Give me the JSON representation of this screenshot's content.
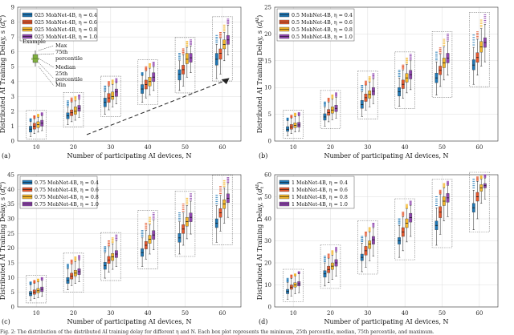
{
  "colors": {
    "eta04": "#1f77b4",
    "eta06": "#e4572e",
    "eta08": "#f3b62a",
    "eta10": "#8e44ad",
    "grid": "#dcdcdc",
    "box_dash": "#777777"
  },
  "caption": "Fig. 2: The distribution of the distributed AI training delay for different η and N. Each box plot represents the minimum, 25th percentile, median, 75th percentile, and maximum.",
  "annotation": {
    "example": "Example",
    "max": "Max",
    "p75_a": "75th",
    "p75_b": "percentile",
    "median": "Median",
    "p25_a": "25th",
    "p25_b": "percentile",
    "min": "Min"
  },
  "chart_data": [
    {
      "panel": "(a)",
      "type": "boxplot",
      "xlabel": "Number of participating AI devices, N",
      "ylabel": "Distributed AI Training Delay, s (d_t^AI)",
      "categories": [
        10,
        20,
        30,
        40,
        50,
        60
      ],
      "ylim": [
        0,
        9
      ],
      "yticks": [
        0,
        1,
        2,
        3,
        4,
        5,
        6,
        7,
        8,
        9
      ],
      "legend": [
        "025 MobNet-4B, η = 0.4",
        "025 MobNet-4B, η = 0.6",
        "025 MobNet-4B, η = 0.8",
        "025 MobNet-4B, η = 1.0"
      ],
      "series": [
        {
          "name": "η = 0.4",
          "median": [
            0.8,
            1.7,
            2.6,
            3.5,
            4.5,
            5.5
          ],
          "q1": [
            0.6,
            1.5,
            2.3,
            3.2,
            4.1,
            5.1
          ],
          "q3": [
            1.0,
            1.9,
            2.9,
            3.8,
            4.8,
            5.9
          ],
          "min": [
            0.3,
            1.1,
            1.8,
            2.6,
            3.4,
            4.2
          ],
          "max": [
            1.3,
            2.3,
            3.3,
            4.4,
            5.4,
            6.5
          ],
          "outlier_top": [
            1.5,
            2.7,
            3.7,
            4.6,
            5.9,
            7.1
          ]
        },
        {
          "name": "η = 0.6",
          "median": [
            1.0,
            1.9,
            2.9,
            3.8,
            4.8,
            5.9
          ],
          "q1": [
            0.8,
            1.7,
            2.6,
            3.5,
            4.5,
            5.5
          ],
          "q3": [
            1.2,
            2.1,
            3.2,
            4.1,
            5.1,
            6.2
          ],
          "min": [
            0.5,
            1.3,
            2.1,
            2.9,
            3.7,
            4.5
          ],
          "max": [
            1.5,
            2.6,
            3.7,
            4.7,
            5.8,
            6.9
          ],
          "outlier_top": [
            1.7,
            2.9,
            4.0,
            5.0,
            6.2,
            7.3
          ]
        },
        {
          "name": "η = 0.8",
          "median": [
            1.1,
            2.0,
            3.0,
            4.0,
            5.5,
            6.5
          ],
          "q1": [
            0.9,
            1.8,
            2.8,
            3.7,
            5.2,
            6.2
          ],
          "q3": [
            1.3,
            2.3,
            3.3,
            4.3,
            5.9,
            6.8
          ],
          "min": [
            0.6,
            1.4,
            2.3,
            3.1,
            4.3,
            5.4
          ],
          "max": [
            1.6,
            2.7,
            3.8,
            4.9,
            6.3,
            7.3
          ],
          "outlier_top": [
            1.8,
            3.0,
            4.1,
            5.2,
            6.7,
            7.8
          ]
        },
        {
          "name": "η = 1.0",
          "median": [
            1.2,
            2.2,
            3.3,
            4.3,
            5.6,
            6.8
          ],
          "q1": [
            1.0,
            2.0,
            3.0,
            4.0,
            5.3,
            6.5
          ],
          "q3": [
            1.4,
            2.4,
            3.5,
            4.6,
            5.9,
            7.1
          ],
          "min": [
            0.7,
            1.6,
            2.5,
            3.4,
            4.6,
            5.8
          ],
          "max": [
            1.7,
            2.8,
            3.9,
            5.0,
            6.4,
            7.8
          ],
          "outlier_top": [
            1.9,
            3.1,
            4.2,
            5.3,
            6.8,
            8.2
          ]
        }
      ]
    },
    {
      "panel": "(b)",
      "type": "boxplot",
      "xlabel": "Number of participating AI devices, N",
      "ylabel": "Distributed AI Training Delay, s (d_t^AI)",
      "categories": [
        10,
        20,
        30,
        40,
        50,
        60
      ],
      "ylim": [
        0,
        25
      ],
      "yticks": [
        0,
        5,
        10,
        15,
        20,
        25
      ],
      "legend": [
        "0.5 MobNet-4B, η = 0.4",
        "0.5 MobNet-4B, η = 0.6",
        "0.5 MobNet-4B, η = 0.8",
        "0.5 MobNet-4B, η = 1.0"
      ],
      "series": [
        {
          "name": "η = 0.4",
          "median": [
            2.2,
            4.5,
            6.8,
            9.2,
            11.8,
            14.2
          ],
          "q1": [
            1.8,
            3.9,
            6.1,
            8.4,
            10.9,
            13.3
          ],
          "q3": [
            2.7,
            5.1,
            7.6,
            10.0,
            12.7,
            15.2
          ],
          "min": [
            1.0,
            2.8,
            4.6,
            6.5,
            8.6,
            10.6
          ],
          "max": [
            3.8,
            6.4,
            9.2,
            11.8,
            14.8,
            17.5
          ],
          "outlier_top": [
            4.3,
            7.3,
            10.4,
            13.2,
            16.6,
            19.8
          ]
        },
        {
          "name": "η = 0.6",
          "median": [
            2.6,
            5.3,
            8.1,
            10.6,
            13.2,
            15.6
          ],
          "q1": [
            2.2,
            4.8,
            7.4,
            9.8,
            12.4,
            14.7
          ],
          "q3": [
            3.1,
            5.9,
            8.8,
            11.4,
            14.0,
            16.5
          ],
          "min": [
            1.4,
            3.6,
            5.8,
            8.0,
            10.2,
            12.3
          ],
          "max": [
            4.3,
            7.3,
            10.4,
            13.3,
            16.2,
            19.0
          ],
          "outlier_top": [
            4.8,
            8.0,
            11.2,
            14.2,
            17.4,
            20.4
          ]
        },
        {
          "name": "η = 0.8",
          "median": [
            2.9,
            5.8,
            8.7,
            11.8,
            14.6,
            17.6
          ],
          "q1": [
            2.5,
            5.2,
            8.0,
            11.0,
            13.7,
            16.6
          ],
          "q3": [
            3.4,
            6.4,
            9.4,
            12.6,
            15.5,
            18.6
          ],
          "min": [
            1.7,
            4.0,
            6.4,
            9.0,
            11.4,
            14.0
          ],
          "max": [
            4.6,
            7.8,
            11.0,
            14.3,
            17.6,
            21.0
          ],
          "outlier_top": [
            5.2,
            8.6,
            12.0,
            15.5,
            19.0,
            22.6
          ]
        },
        {
          "name": "η = 1.0",
          "median": [
            3.0,
            6.1,
            9.3,
            12.4,
            15.5,
            18.4
          ],
          "q1": [
            2.6,
            5.5,
            8.6,
            11.6,
            14.6,
            17.5
          ],
          "q3": [
            3.5,
            6.7,
            10.0,
            13.2,
            16.4,
            19.3
          ],
          "min": [
            1.8,
            4.3,
            7.0,
            9.6,
            12.3,
            14.8
          ],
          "max": [
            4.7,
            8.2,
            11.6,
            15.0,
            18.6,
            21.8
          ],
          "outlier_top": [
            5.3,
            9.0,
            12.6,
            16.2,
            20.0,
            23.6
          ]
        }
      ]
    },
    {
      "panel": "(c)",
      "type": "boxplot",
      "xlabel": "Number of participating AI devices, N",
      "ylabel": "Distributed AI Training Delay, s (d_t^AI)",
      "categories": [
        10,
        20,
        30,
        40,
        50,
        60
      ],
      "ylim": [
        0,
        45
      ],
      "yticks": [
        0,
        5,
        10,
        15,
        20,
        25,
        30,
        35,
        40,
        45
      ],
      "legend": [
        "0.75 MobNet-4B, η = 0.4",
        "0.75 MobNet-4B, η = 0.6",
        "0.75 MobNet-4B, η = 0.8",
        "0.75 MobNet-4B, η = 1.0"
      ],
      "series": [
        {
          "name": "η = 0.4",
          "median": [
            4.5,
            9.0,
            14.0,
            18.5,
            23.5,
            28.5
          ],
          "q1": [
            3.8,
            8.0,
            12.8,
            17.2,
            22.0,
            27.0
          ],
          "q3": [
            5.3,
            10.0,
            15.2,
            19.8,
            25.0,
            30.0
          ],
          "min": [
            2.2,
            5.8,
            9.8,
            13.8,
            18.0,
            22.0
          ],
          "max": [
            7.5,
            13.0,
            18.5,
            23.5,
            29.0,
            34.5
          ],
          "outlier_top": [
            8.5,
            14.5,
            20.5,
            26.0,
            32.0,
            38.0
          ]
        },
        {
          "name": "η = 0.6",
          "median": [
            5.0,
            10.5,
            16.0,
            21.0,
            26.5,
            32.0
          ],
          "q1": [
            4.3,
            9.5,
            14.8,
            19.7,
            25.0,
            30.5
          ],
          "q3": [
            5.8,
            11.5,
            17.2,
            22.3,
            28.0,
            33.5
          ],
          "min": [
            2.8,
            7.3,
            11.8,
            16.3,
            21.0,
            25.8
          ],
          "max": [
            8.0,
            14.5,
            20.5,
            26.0,
            32.0,
            38.0
          ],
          "outlier_top": [
            9.0,
            16.0,
            22.5,
            28.5,
            35.0,
            41.0
          ]
        },
        {
          "name": "η = 0.8",
          "median": [
            5.5,
            11.5,
            17.0,
            23.0,
            29.0,
            35.0
          ],
          "q1": [
            4.8,
            10.5,
            15.8,
            21.6,
            27.5,
            33.5
          ],
          "q3": [
            6.3,
            12.5,
            18.2,
            24.4,
            30.5,
            36.5
          ],
          "min": [
            3.2,
            8.0,
            12.8,
            18.0,
            23.2,
            28.5
          ],
          "max": [
            8.5,
            15.5,
            21.5,
            28.0,
            34.5,
            40.5
          ],
          "outlier_top": [
            9.5,
            17.0,
            23.5,
            30.5,
            37.0,
            43.0
          ]
        },
        {
          "name": "η = 1.0",
          "median": [
            6.0,
            12.0,
            18.0,
            24.5,
            30.5,
            37.0
          ],
          "q1": [
            5.2,
            11.0,
            16.8,
            23.0,
            29.0,
            35.5
          ],
          "q3": [
            6.8,
            13.0,
            19.2,
            26.0,
            32.0,
            38.5
          ],
          "min": [
            3.6,
            8.6,
            13.8,
            19.5,
            24.8,
            30.5
          ],
          "max": [
            9.0,
            16.0,
            22.5,
            29.5,
            36.0,
            42.0
          ],
          "outlier_top": [
            10.0,
            17.5,
            24.5,
            32.0,
            38.5,
            44.0
          ]
        }
      ]
    },
    {
      "panel": "(d)",
      "type": "boxplot",
      "xlabel": "Number of participating AI devices, N",
      "ylabel": "Distributed AI Training Delay, s (d_t^AI)",
      "categories": [
        10,
        20,
        30,
        40,
        50,
        60
      ],
      "ylim": [
        0,
        60
      ],
      "yticks": [
        0,
        10,
        20,
        30,
        40,
        50,
        60
      ],
      "legend": [
        "1 MobNet-4B, η = 0.4",
        "1 MobNet-4B, η = 0.6",
        "1 MobNet-4B, η = 0.8",
        "1 MobNet-4B, η = 1.0"
      ],
      "series": [
        {
          "name": "η = 0.4",
          "median": [
            7.0,
            15.0,
            22.5,
            30.0,
            37.0,
            45.0
          ],
          "q1": [
            6.0,
            13.5,
            21.0,
            28.5,
            35.0,
            43.0
          ],
          "q3": [
            8.0,
            16.5,
            24.0,
            31.5,
            39.0,
            47.0
          ],
          "min": [
            3.5,
            9.5,
            16.0,
            22.5,
            28.0,
            35.0
          ],
          "max": [
            11.0,
            20.0,
            29.0,
            37.0,
            45.0,
            53.0
          ],
          "outlier_top": [
            13.0,
            23.0,
            32.0,
            40.0,
            50.0,
            58.0
          ]
        },
        {
          "name": "η = 0.6",
          "median": [
            9.0,
            17.0,
            25.5,
            34.0,
            43.0,
            50.0
          ],
          "q1": [
            8.0,
            15.5,
            23.5,
            32.0,
            40.5,
            48.0
          ],
          "q3": [
            10.0,
            18.5,
            27.5,
            36.0,
            45.5,
            52.0
          ],
          "min": [
            5.0,
            11.0,
            18.0,
            25.5,
            33.0,
            40.0
          ],
          "max": [
            13.0,
            22.0,
            32.0,
            41.0,
            51.0,
            57.0
          ],
          "outlier_top": [
            14.5,
            24.0,
            34.0,
            43.0,
            53.0,
            59.0
          ]
        },
        {
          "name": "η = 0.8",
          "median": [
            10.0,
            18.5,
            28.5,
            38.0,
            48.0,
            54.0
          ],
          "q1": [
            9.0,
            17.0,
            26.5,
            36.0,
            46.0,
            52.5
          ],
          "q3": [
            11.0,
            20.0,
            30.0,
            40.0,
            50.0,
            55.5
          ],
          "min": [
            6.0,
            12.5,
            21.0,
            29.5,
            39.0,
            47.0
          ],
          "max": [
            14.0,
            23.5,
            34.0,
            44.5,
            54.0,
            58.0
          ],
          "outlier_top": [
            15.0,
            25.5,
            36.0,
            46.5,
            56.0,
            59.5
          ]
        },
        {
          "name": "η = 1.0",
          "median": [
            10.5,
            20.0,
            30.5,
            40.5,
            49.5,
            55.0
          ],
          "q1": [
            9.5,
            18.5,
            28.5,
            38.5,
            47.5,
            54.0
          ],
          "q3": [
            11.5,
            21.5,
            32.0,
            42.5,
            51.5,
            56.0
          ],
          "min": [
            6.5,
            14.0,
            23.0,
            32.0,
            41.0,
            49.0
          ],
          "max": [
            15.0,
            25.0,
            36.0,
            46.0,
            55.0,
            58.5
          ],
          "outlier_top": [
            16.0,
            27.0,
            38.0,
            48.0,
            57.0,
            60.0
          ]
        }
      ]
    }
  ]
}
